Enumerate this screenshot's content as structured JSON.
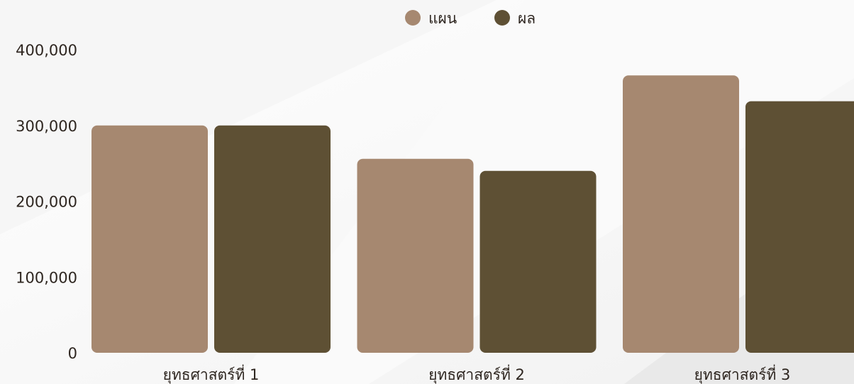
{
  "colors": {
    "plan": "#a68870",
    "result": "#5e5034",
    "text": "#2e2620",
    "background": "#ffffff"
  },
  "chart_data": {
    "type": "bar",
    "categories": [
      "ยุทธศาสตร์ที่ 1",
      "ยุทธศาสตร์ที่ 2",
      "ยุทธศาสตร์ที่ 3"
    ],
    "series": [
      {
        "name": "แผน",
        "values": [
          300000,
          256000,
          366000
        ]
      },
      {
        "name": "ผล",
        "values": [
          300000,
          240000,
          332000
        ]
      }
    ],
    "y_ticks": [
      "0",
      "100,000",
      "200,000",
      "300,000",
      "400,000"
    ],
    "ylim": [
      0,
      400000
    ],
    "legend_position": "top-center",
    "grid": false
  }
}
